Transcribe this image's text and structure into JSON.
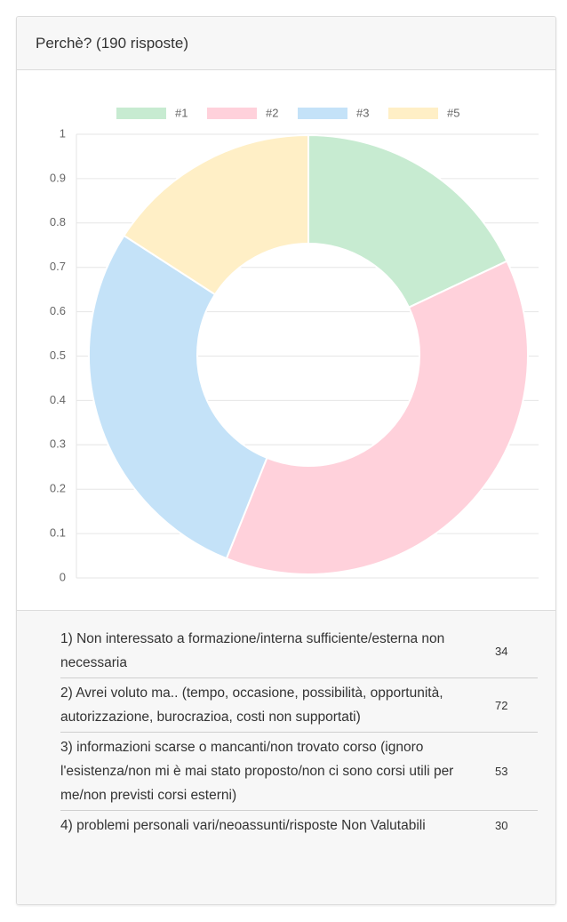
{
  "card": {
    "title": "Perchè? (190 risposte)"
  },
  "chart_data": {
    "type": "doughnut",
    "categories": [
      "#1",
      "#2",
      "#3",
      "#5"
    ],
    "values": [
      34,
      72,
      53,
      30
    ],
    "colors": [
      "#c7ebd1",
      "#ffd1db",
      "#c4e2f8",
      "#ffefc6"
    ],
    "ylim": [
      0,
      1
    ],
    "yticks": [
      0,
      0.1,
      0.2,
      0.3,
      0.4,
      0.5,
      0.6,
      0.7,
      0.8,
      0.9,
      1
    ],
    "grid": true,
    "legend": "top"
  },
  "table": {
    "rows": [
      "1) Non interessato a formazione/interna sufficiente/esterna non necessaria",
      "2) Avrei voluto ma.. (tempo, occasione, possibilità, opportunità, autorizzazione, burocrazioa, costi non supportati)",
      "3) informazioni scarse o mancanti/non trovato corso (ignoro l'esistenza/non mi è mai stato proposto/non ci sono corsi utili per me/non previsti corsi esterni)",
      "4) problemi personali vari/neoassunti/risposte Non Valutabili"
    ]
  }
}
